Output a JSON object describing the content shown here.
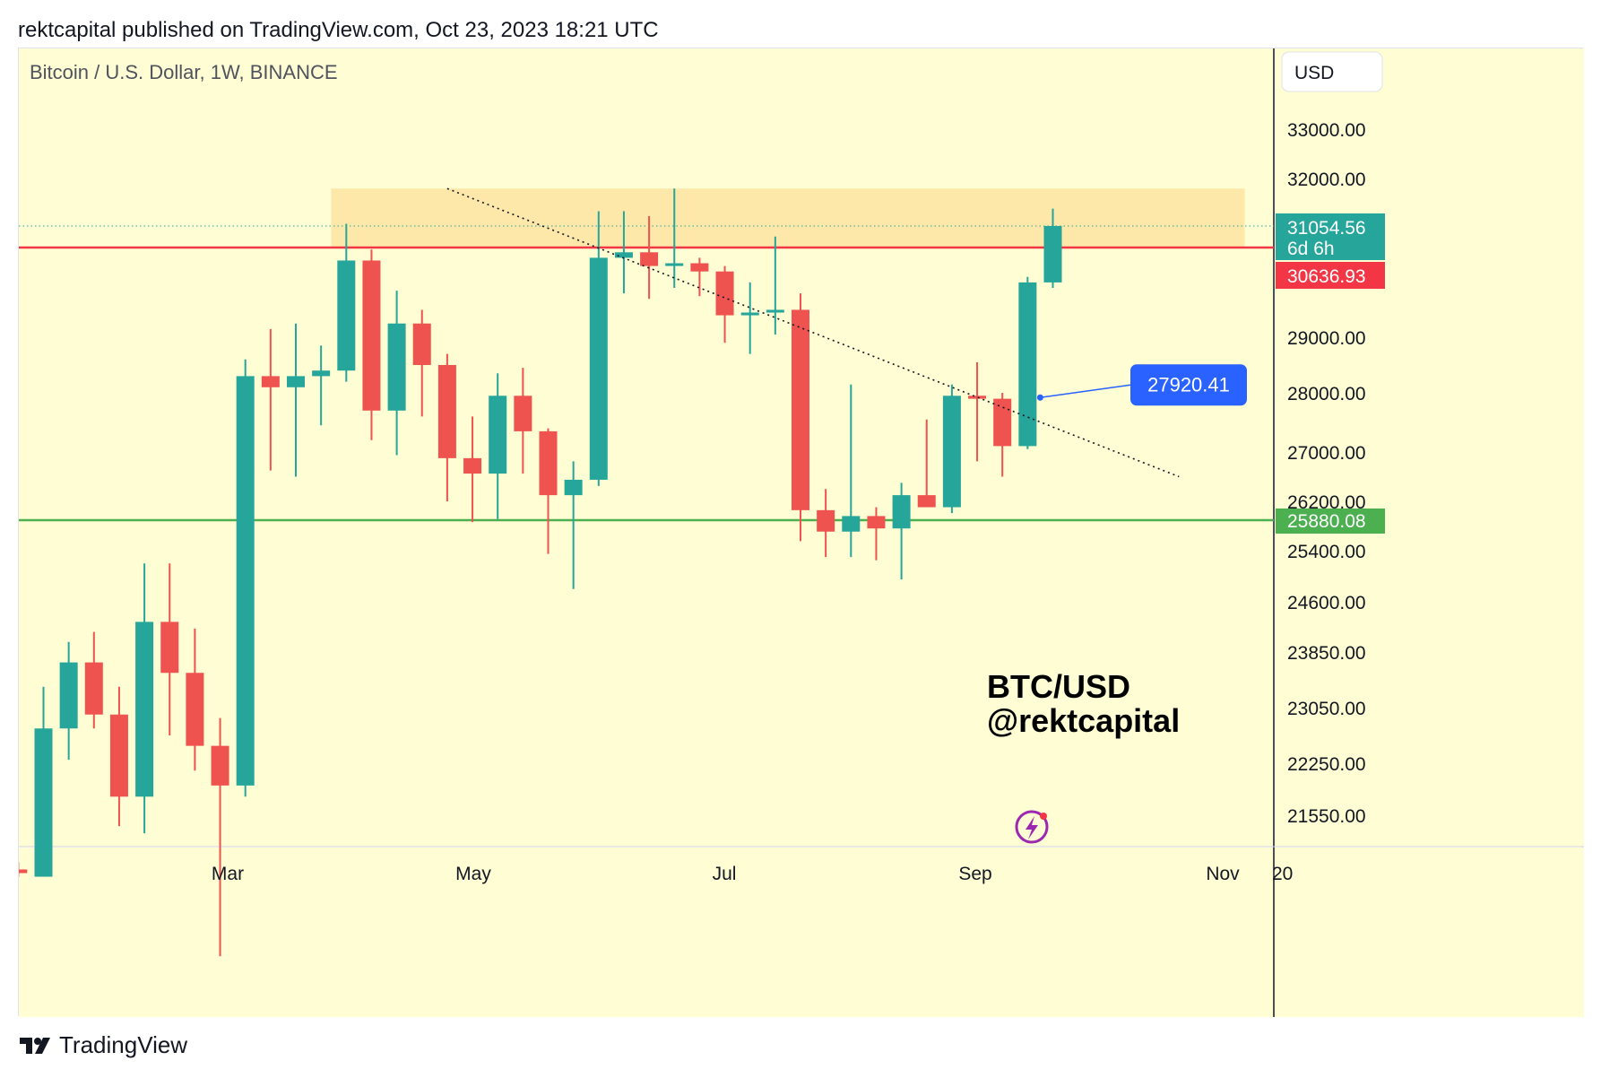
{
  "header": {
    "published_line": "rektcapital published on TradingView.com, Oct 23, 2023 18:21 UTC"
  },
  "footer": {
    "brand": "TradingView",
    "logo_icon": "tradingview-logo-icon"
  },
  "colors": {
    "background": "#fefdd3",
    "up": "#26a69a",
    "down": "#ef5350",
    "resistance": "#f23645",
    "support": "#4caf50",
    "zone": "#fde3a1",
    "callout": "#2962ff"
  },
  "chart_data": {
    "type": "candlestick",
    "symbol_label": "Bitcoin / U.S. Dollar, 1W, BINANCE",
    "currency_button": "USD",
    "y_ticks": [
      "33000.00",
      "32000.00",
      "29000.00",
      "28000.00",
      "27000.00",
      "26200.00",
      "25400.00",
      "24600.00",
      "23850.00",
      "23050.00",
      "22250.00",
      "21550.00"
    ],
    "x_ticks": [
      "Mar",
      "May",
      "Jul",
      "Sep",
      "Nov",
      "20"
    ],
    "candles": [
      {
        "o": 20800,
        "h": 20900,
        "l": 20700,
        "c": 20750
      },
      {
        "o": 20700,
        "h": 23350,
        "l": 20700,
        "c": 22750
      },
      {
        "o": 22750,
        "h": 24000,
        "l": 22300,
        "c": 23700
      },
      {
        "o": 23700,
        "h": 24150,
        "l": 22750,
        "c": 22950
      },
      {
        "o": 22950,
        "h": 23350,
        "l": 21400,
        "c": 21800
      },
      {
        "o": 21800,
        "h": 25200,
        "l": 21300,
        "c": 24300
      },
      {
        "o": 24300,
        "h": 25200,
        "l": 22650,
        "c": 23550
      },
      {
        "o": 23550,
        "h": 24200,
        "l": 22150,
        "c": 22500
      },
      {
        "o": 22500,
        "h": 22900,
        "l": 19600,
        "c": 21950
      },
      {
        "o": 21950,
        "h": 28600,
        "l": 21800,
        "c": 28300
      },
      {
        "o": 28300,
        "h": 29150,
        "l": 26700,
        "c": 28100
      },
      {
        "o": 28100,
        "h": 29250,
        "l": 26600,
        "c": 28300
      },
      {
        "o": 28300,
        "h": 28850,
        "l": 27450,
        "c": 28400
      },
      {
        "o": 28400,
        "h": 31100,
        "l": 28200,
        "c": 30400
      },
      {
        "o": 30400,
        "h": 30600,
        "l": 27200,
        "c": 27700
      },
      {
        "o": 27700,
        "h": 29850,
        "l": 26950,
        "c": 29250
      },
      {
        "o": 29250,
        "h": 29500,
        "l": 27600,
        "c": 28500
      },
      {
        "o": 28500,
        "h": 28700,
        "l": 26200,
        "c": 26900
      },
      {
        "o": 26900,
        "h": 27600,
        "l": 25850,
        "c": 26650
      },
      {
        "o": 26650,
        "h": 28350,
        "l": 25900,
        "c": 27950
      },
      {
        "o": 27950,
        "h": 28450,
        "l": 26650,
        "c": 27350
      },
      {
        "o": 27350,
        "h": 27400,
        "l": 25350,
        "c": 26300
      },
      {
        "o": 26300,
        "h": 26850,
        "l": 24800,
        "c": 26550
      },
      {
        "o": 26550,
        "h": 31350,
        "l": 26450,
        "c": 30450
      },
      {
        "o": 30450,
        "h": 31350,
        "l": 29800,
        "c": 30550
      },
      {
        "o": 30550,
        "h": 31250,
        "l": 29700,
        "c": 30300
      },
      {
        "o": 30300,
        "h": 31800,
        "l": 29900,
        "c": 30350
      },
      {
        "o": 30350,
        "h": 30450,
        "l": 29750,
        "c": 30200
      },
      {
        "o": 30200,
        "h": 30300,
        "l": 28900,
        "c": 29400
      },
      {
        "o": 29400,
        "h": 30000,
        "l": 28700,
        "c": 29450
      },
      {
        "o": 29450,
        "h": 30850,
        "l": 29050,
        "c": 29500
      },
      {
        "o": 29500,
        "h": 29800,
        "l": 25550,
        "c": 26050
      },
      {
        "o": 26050,
        "h": 26400,
        "l": 25300,
        "c": 25700
      },
      {
        "o": 25700,
        "h": 28150,
        "l": 25300,
        "c": 25950
      },
      {
        "o": 25950,
        "h": 26100,
        "l": 25250,
        "c": 25750
      },
      {
        "o": 25750,
        "h": 26500,
        "l": 24950,
        "c": 26300
      },
      {
        "o": 26300,
        "h": 27550,
        "l": 26150,
        "c": 26100
      },
      {
        "o": 26100,
        "h": 28150,
        "l": 26000,
        "c": 27950
      },
      {
        "o": 27950,
        "h": 28550,
        "l": 26850,
        "c": 27900
      },
      {
        "o": 27900,
        "h": 28000,
        "l": 26600,
        "c": 27100
      },
      {
        "o": 27100,
        "h": 30100,
        "l": 27050,
        "c": 30000
      },
      {
        "o": 30000,
        "h": 31400,
        "l": 29900,
        "c": 31054.56
      }
    ],
    "levels": [
      {
        "name": "current",
        "value": 31054.56,
        "label": "31054.56",
        "sublabel": "6d 6h",
        "color": "#26a69a",
        "line": "dotted"
      },
      {
        "name": "resistance",
        "value": 30636.93,
        "label": "30636.93",
        "color": "#f23645",
        "line": "solid"
      },
      {
        "name": "support",
        "value": 25880.08,
        "label": "25880.08",
        "color": "#4caf50",
        "line": "solid"
      }
    ],
    "zone": {
      "from": 30636.93,
      "to": 31800
    },
    "trendline": {
      "from": {
        "bar": 17,
        "price": 31800
      },
      "to": {
        "bar": 46,
        "price": 26600
      }
    },
    "callout": {
      "label": "27920.41",
      "value": 27920.41,
      "bar": 40.5
    },
    "watermark": [
      "BTC/USD",
      "@rektcapital"
    ],
    "grid": false
  }
}
